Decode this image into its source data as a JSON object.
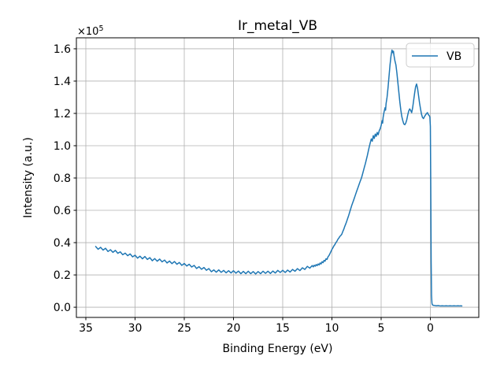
{
  "figure": {
    "background": "#ffffff"
  },
  "colors": {
    "line": "#1f77b4",
    "grid": "#b0b0b0",
    "axes": "#000000",
    "legend_border": "#cccccc",
    "legend_fill": "#ffffff"
  },
  "chart_data": {
    "type": "line",
    "title": "Ir_metal_VB",
    "xlabel": "Binding Energy (eV)",
    "ylabel": "Intensity (a.u.)",
    "offset_base": "×10",
    "offset_exp": "5",
    "y_multiplier": 100000,
    "x_axis_inverted": true,
    "xlim": [
      35.96,
      -4.92
    ],
    "ylim": [
      -0.063,
      1.668
    ],
    "xticks": [
      35,
      30,
      25,
      20,
      15,
      10,
      5,
      0
    ],
    "yticks": [
      0.0,
      0.2,
      0.4,
      0.6,
      0.8,
      1.0,
      1.2,
      1.4,
      1.6
    ],
    "grid": true,
    "legend_position": "upper right",
    "series": [
      {
        "name": "VB",
        "color": "#1f77b4",
        "x_units": "eV",
        "y_units": "intensity x1e5 (a.u.)",
        "points": [
          [
            34.0,
            0.376
          ],
          [
            33.75,
            0.359
          ],
          [
            33.5,
            0.371
          ],
          [
            33.25,
            0.354
          ],
          [
            33.0,
            0.365
          ],
          [
            32.75,
            0.345
          ],
          [
            32.5,
            0.356
          ],
          [
            32.25,
            0.34
          ],
          [
            32.0,
            0.352
          ],
          [
            31.75,
            0.334
          ],
          [
            31.5,
            0.343
          ],
          [
            31.25,
            0.325
          ],
          [
            31.0,
            0.335
          ],
          [
            30.75,
            0.319
          ],
          [
            30.5,
            0.33
          ],
          [
            30.25,
            0.312
          ],
          [
            30.0,
            0.322
          ],
          [
            29.75,
            0.304
          ],
          [
            29.5,
            0.316
          ],
          [
            29.25,
            0.3
          ],
          [
            29.0,
            0.314
          ],
          [
            28.75,
            0.296
          ],
          [
            28.5,
            0.307
          ],
          [
            28.25,
            0.288
          ],
          [
            28.0,
            0.301
          ],
          [
            27.75,
            0.285
          ],
          [
            27.5,
            0.298
          ],
          [
            27.25,
            0.281
          ],
          [
            27.0,
            0.292
          ],
          [
            26.75,
            0.274
          ],
          [
            26.5,
            0.286
          ],
          [
            26.25,
            0.27
          ],
          [
            26.0,
            0.283
          ],
          [
            25.75,
            0.266
          ],
          [
            25.5,
            0.277
          ],
          [
            25.25,
            0.259
          ],
          [
            25.0,
            0.271
          ],
          [
            24.75,
            0.255
          ],
          [
            24.5,
            0.266
          ],
          [
            24.25,
            0.249
          ],
          [
            24.0,
            0.259
          ],
          [
            23.75,
            0.24
          ],
          [
            23.5,
            0.251
          ],
          [
            23.25,
            0.235
          ],
          [
            23.0,
            0.246
          ],
          [
            22.75,
            0.229
          ],
          [
            22.5,
            0.239
          ],
          [
            22.25,
            0.22
          ],
          [
            22.0,
            0.231
          ],
          [
            21.75,
            0.217
          ],
          [
            21.5,
            0.231
          ],
          [
            21.25,
            0.216
          ],
          [
            21.0,
            0.228
          ],
          [
            20.75,
            0.213
          ],
          [
            20.5,
            0.226
          ],
          [
            20.25,
            0.212
          ],
          [
            20.0,
            0.226
          ],
          [
            19.75,
            0.211
          ],
          [
            19.5,
            0.224
          ],
          [
            19.25,
            0.208
          ],
          [
            19.0,
            0.222
          ],
          [
            18.75,
            0.208
          ],
          [
            18.5,
            0.223
          ],
          [
            18.25,
            0.208
          ],
          [
            18.0,
            0.221
          ],
          [
            17.75,
            0.206
          ],
          [
            17.5,
            0.221
          ],
          [
            17.25,
            0.208
          ],
          [
            17.0,
            0.223
          ],
          [
            16.75,
            0.21
          ],
          [
            16.5,
            0.223
          ],
          [
            16.25,
            0.209
          ],
          [
            16.0,
            0.224
          ],
          [
            15.75,
            0.212
          ],
          [
            15.5,
            0.228
          ],
          [
            15.25,
            0.215
          ],
          [
            15.0,
            0.229
          ],
          [
            14.75,
            0.215
          ],
          [
            14.5,
            0.23
          ],
          [
            14.25,
            0.218
          ],
          [
            14.0,
            0.234
          ],
          [
            13.75,
            0.223
          ],
          [
            13.5,
            0.239
          ],
          [
            13.25,
            0.227
          ],
          [
            13.0,
            0.244
          ],
          [
            12.75,
            0.234
          ],
          [
            12.5,
            0.253
          ],
          [
            12.25,
            0.242
          ],
          [
            12.0,
            0.258
          ],
          [
            11.9,
            0.25
          ],
          [
            11.8,
            0.26
          ],
          [
            11.7,
            0.254
          ],
          [
            11.6,
            0.264
          ],
          [
            11.5,
            0.258
          ],
          [
            11.4,
            0.268
          ],
          [
            11.3,
            0.262
          ],
          [
            11.2,
            0.274
          ],
          [
            11.1,
            0.268
          ],
          [
            11.0,
            0.282
          ],
          [
            10.9,
            0.276
          ],
          [
            10.8,
            0.29
          ],
          [
            10.7,
            0.285
          ],
          [
            10.6,
            0.3
          ],
          [
            10.5,
            0.296
          ],
          [
            10.4,
            0.312
          ],
          [
            10.3,
            0.32
          ],
          [
            10.2,
            0.332
          ],
          [
            10.1,
            0.345
          ],
          [
            10.0,
            0.358
          ],
          [
            9.9,
            0.368
          ],
          [
            9.8,
            0.38
          ],
          [
            9.7,
            0.388
          ],
          [
            9.6,
            0.4
          ],
          [
            9.5,
            0.408
          ],
          [
            9.4,
            0.42
          ],
          [
            9.3,
            0.428
          ],
          [
            9.2,
            0.438
          ],
          [
            9.1,
            0.444
          ],
          [
            9.0,
            0.452
          ],
          [
            8.9,
            0.468
          ],
          [
            8.8,
            0.482
          ],
          [
            8.7,
            0.5
          ],
          [
            8.6,
            0.515
          ],
          [
            8.5,
            0.532
          ],
          [
            8.4,
            0.55
          ],
          [
            8.3,
            0.568
          ],
          [
            8.2,
            0.588
          ],
          [
            8.1,
            0.608
          ],
          [
            8.0,
            0.628
          ],
          [
            7.9,
            0.645
          ],
          [
            7.8,
            0.662
          ],
          [
            7.7,
            0.68
          ],
          [
            7.6,
            0.698
          ],
          [
            7.5,
            0.716
          ],
          [
            7.4,
            0.733
          ],
          [
            7.3,
            0.75
          ],
          [
            7.2,
            0.768
          ],
          [
            7.1,
            0.784
          ],
          [
            7.0,
            0.8
          ],
          [
            6.9,
            0.822
          ],
          [
            6.8,
            0.845
          ],
          [
            6.7,
            0.868
          ],
          [
            6.6,
            0.89
          ],
          [
            6.5,
            0.915
          ],
          [
            6.4,
            0.94
          ],
          [
            6.3,
            0.968
          ],
          [
            6.2,
            0.995
          ],
          [
            6.1,
            1.02
          ],
          [
            6.0,
            1.042
          ],
          [
            5.9,
            1.028
          ],
          [
            5.8,
            1.062
          ],
          [
            5.7,
            1.045
          ],
          [
            5.6,
            1.072
          ],
          [
            5.5,
            1.058
          ],
          [
            5.4,
            1.082
          ],
          [
            5.3,
            1.068
          ],
          [
            5.2,
            1.092
          ],
          [
            5.1,
            1.105
          ],
          [
            5.0,
            1.125
          ],
          [
            4.9,
            1.155
          ],
          [
            4.85,
            1.14
          ],
          [
            4.8,
            1.175
          ],
          [
            4.7,
            1.21
          ],
          [
            4.6,
            1.235
          ],
          [
            4.55,
            1.22
          ],
          [
            4.5,
            1.26
          ],
          [
            4.4,
            1.3
          ],
          [
            4.3,
            1.36
          ],
          [
            4.2,
            1.43
          ],
          [
            4.1,
            1.5
          ],
          [
            4.0,
            1.555
          ],
          [
            3.9,
            1.592
          ],
          [
            3.8,
            1.575
          ],
          [
            3.75,
            1.585
          ],
          [
            3.7,
            1.56
          ],
          [
            3.6,
            1.525
          ],
          [
            3.5,
            1.5
          ],
          [
            3.4,
            1.45
          ],
          [
            3.3,
            1.39
          ],
          [
            3.2,
            1.33
          ],
          [
            3.1,
            1.27
          ],
          [
            3.0,
            1.22
          ],
          [
            2.9,
            1.18
          ],
          [
            2.8,
            1.155
          ],
          [
            2.7,
            1.135
          ],
          [
            2.6,
            1.13
          ],
          [
            2.5,
            1.14
          ],
          [
            2.4,
            1.16
          ],
          [
            2.3,
            1.19
          ],
          [
            2.2,
            1.215
          ],
          [
            2.1,
            1.228
          ],
          [
            2.0,
            1.218
          ],
          [
            1.9,
            1.205
          ],
          [
            1.8,
            1.235
          ],
          [
            1.7,
            1.28
          ],
          [
            1.6,
            1.325
          ],
          [
            1.5,
            1.365
          ],
          [
            1.4,
            1.382
          ],
          [
            1.3,
            1.355
          ],
          [
            1.2,
            1.31
          ],
          [
            1.1,
            1.265
          ],
          [
            1.0,
            1.228
          ],
          [
            0.9,
            1.195
          ],
          [
            0.8,
            1.175
          ],
          [
            0.7,
            1.168
          ],
          [
            0.6,
            1.18
          ],
          [
            0.5,
            1.19
          ],
          [
            0.4,
            1.198
          ],
          [
            0.3,
            1.205
          ],
          [
            0.2,
            1.192
          ],
          [
            0.1,
            1.185
          ],
          [
            0.05,
            1.178
          ],
          [
            0.0,
            1.12
          ],
          [
            -0.04,
            0.75
          ],
          [
            -0.08,
            0.28
          ],
          [
            -0.12,
            0.07
          ],
          [
            -0.16,
            0.025
          ],
          [
            -0.2,
            0.015
          ],
          [
            -0.3,
            0.012
          ],
          [
            -0.4,
            0.011
          ],
          [
            -0.6,
            0.009
          ],
          [
            -0.8,
            0.01
          ],
          [
            -1.0,
            0.008
          ],
          [
            -1.2,
            0.009
          ],
          [
            -1.4,
            0.008
          ],
          [
            -1.6,
            0.009
          ],
          [
            -1.8,
            0.008
          ],
          [
            -2.0,
            0.009
          ],
          [
            -2.2,
            0.008
          ],
          [
            -2.4,
            0.009
          ],
          [
            -2.6,
            0.008
          ],
          [
            -2.8,
            0.009
          ],
          [
            -3.0,
            0.008
          ],
          [
            -3.1,
            0.009
          ],
          [
            -3.2,
            0.008
          ]
        ]
      }
    ]
  }
}
